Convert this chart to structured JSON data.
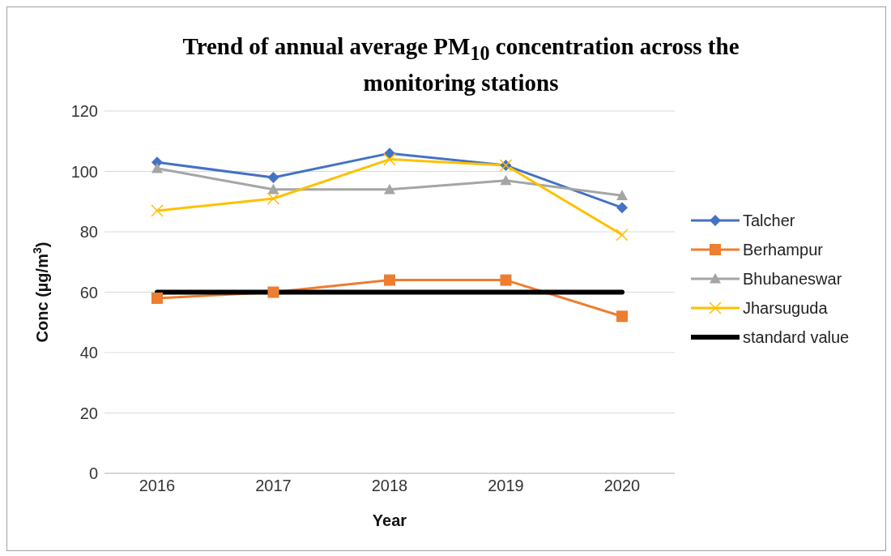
{
  "chart_data": {
    "type": "line",
    "title": "Trend of annual average PM$_{10}$ concentration across the monitoring stations",
    "xlabel": "Year",
    "ylabel": "Conc (µg/m$^{3}$)",
    "categories": [
      "2016",
      "2017",
      "2018",
      "2019",
      "2020"
    ],
    "series": [
      {
        "name": "Talcher",
        "color": "#4472c4",
        "marker": "diamond",
        "values": [
          103,
          98,
          106,
          102,
          88
        ]
      },
      {
        "name": "Berhampur",
        "color": "#ed7d31",
        "marker": "square",
        "values": [
          58,
          60,
          64,
          64,
          52
        ]
      },
      {
        "name": "Bhubaneswar",
        "color": "#a5a5a5",
        "marker": "triangle",
        "values": [
          101,
          94,
          94,
          97,
          92
        ]
      },
      {
        "name": "Jharsuguda",
        "color": "#ffc000",
        "marker": "cross",
        "values": [
          87,
          91,
          104,
          102,
          79
        ]
      },
      {
        "name": "standard value",
        "color": "#000000",
        "marker": "none",
        "values": [
          60,
          60,
          60,
          60,
          60
        ]
      }
    ],
    "ylim": [
      0,
      120
    ],
    "yticks": [
      0,
      20,
      40,
      60,
      80,
      100,
      120
    ],
    "grid": "y",
    "legend": "right",
    "line_style": "solid"
  }
}
